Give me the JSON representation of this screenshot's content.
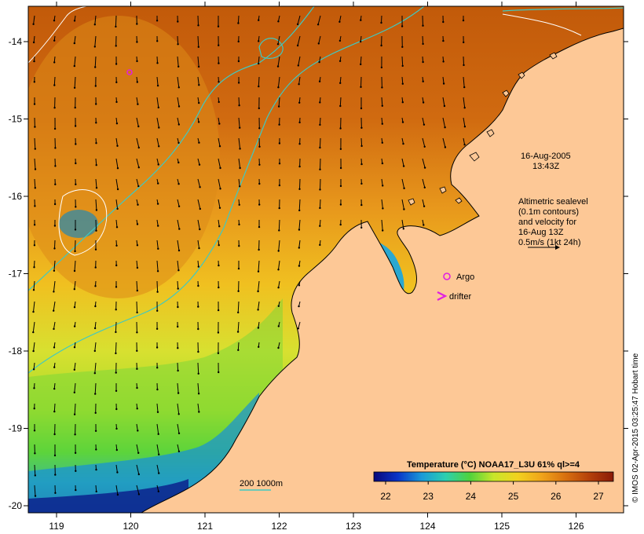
{
  "map": {
    "x_ticks": [
      "119",
      "120",
      "121",
      "122",
      "123",
      "124",
      "125",
      "126"
    ],
    "y_ticks": [
      "-14",
      "-15",
      "-16",
      "-17",
      "-18",
      "-19",
      "-20"
    ]
  },
  "annotations": {
    "datetime_line1": "16-Aug-2005",
    "datetime_line2": "13:43Z",
    "info_lines": [
      "Altimetric sealevel",
      "(0.1m contours)",
      "and velocity for",
      "16-Aug 13Z",
      "0.5m/s (1kt 24h)"
    ],
    "argo_label": "Argo",
    "drifter_label": "drifter",
    "bathy_label": "200  1000m"
  },
  "colorbar": {
    "title": "Temperature (°C) NOAA17_L3U 61% ql>=4",
    "ticks": [
      "22",
      "23",
      "24",
      "25",
      "26",
      "27"
    ],
    "stops": [
      "#08087a",
      "#0a35c8",
      "#1a9ad8",
      "#2ccfb0",
      "#4fd23c",
      "#c8e62a",
      "#f2d21e",
      "#f0a41a",
      "#d8700f",
      "#b4400a",
      "#8a1a08"
    ]
  },
  "credit": "© IMOS 02-Apr-2015 03:25:47 Hobart time",
  "colors": {
    "land": "#fdc896",
    "contour": "#ffffff",
    "bathymetry": "#3fc9c2",
    "argo": "#e020e0",
    "drifter": "#e020e0"
  }
}
